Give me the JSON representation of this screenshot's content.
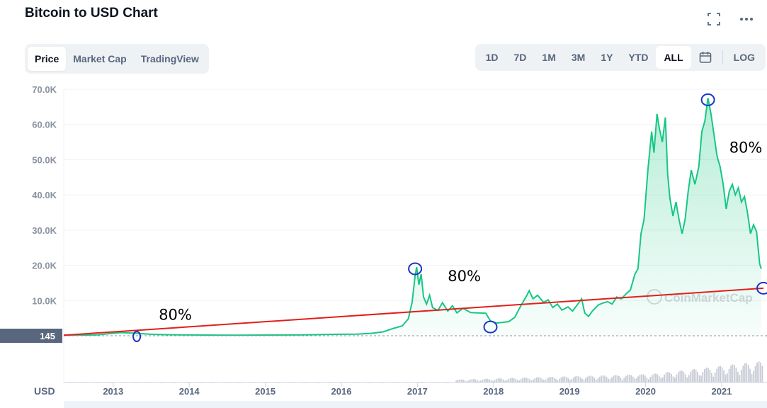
{
  "header": {
    "title": "Bitcoin to USD Chart",
    "icons": [
      "fullscreen-icon",
      "more-icon"
    ]
  },
  "tabs": [
    {
      "label": "Price",
      "active": true
    },
    {
      "label": "Market Cap",
      "active": false
    },
    {
      "label": "TradingView",
      "active": false
    }
  ],
  "ranges": [
    {
      "label": "1D",
      "active": false
    },
    {
      "label": "7D",
      "active": false
    },
    {
      "label": "1M",
      "active": false
    },
    {
      "label": "3M",
      "active": false
    },
    {
      "label": "1Y",
      "active": false
    },
    {
      "label": "YTD",
      "active": false
    },
    {
      "label": "ALL",
      "active": true
    },
    {
      "label": "",
      "icon": "calendar-icon",
      "active": false
    },
    {
      "label": "LOG",
      "active": false
    }
  ],
  "chart_data": {
    "type": "area",
    "title": "",
    "currency_label": "USD",
    "current_marker_label": "145",
    "watermark": "CoinMarketCap",
    "ylim": [
      0,
      70000
    ],
    "y_ticks": [
      {
        "value": 10000,
        "label": "10.0K"
      },
      {
        "value": 20000,
        "label": "20.0K"
      },
      {
        "value": 30000,
        "label": "30.0K"
      },
      {
        "value": 40000,
        "label": "40.0K"
      },
      {
        "value": 50000,
        "label": "50.0K"
      },
      {
        "value": 60000,
        "label": "60.0K"
      },
      {
        "value": 70000,
        "label": "70.0K"
      }
    ],
    "x_ticks": [
      "2013",
      "2014",
      "2015",
      "2016",
      "2017",
      "2018",
      "2019",
      "2020",
      "2021"
    ],
    "xlim": [
      2012.35,
      2021.55
    ],
    "colors": {
      "price": "#16c784",
      "trend": "#e0201c",
      "marker": "#1a35c8",
      "volume": "#c9ccd6"
    },
    "series": [
      {
        "values": [
          [
            2012.35,
            150
          ],
          [
            2012.6,
            180
          ],
          [
            2012.8,
            260
          ],
          [
            2012.95,
            600
          ],
          [
            2013.1,
            900
          ],
          [
            2013.3,
            700
          ],
          [
            2013.5,
            400
          ],
          [
            2013.7,
            300
          ],
          [
            2013.9,
            250
          ],
          [
            2014.2,
            200
          ],
          [
            2014.6,
            150
          ],
          [
            2015.0,
            200
          ],
          [
            2015.5,
            250
          ],
          [
            2015.9,
            400
          ],
          [
            2016.2,
            450
          ],
          [
            2016.4,
            700
          ],
          [
            2016.55,
            1100
          ],
          [
            2016.7,
            2200
          ],
          [
            2016.8,
            2800
          ],
          [
            2016.88,
            4800
          ],
          [
            2016.93,
            9500
          ],
          [
            2016.97,
            17000
          ],
          [
            2016.99,
            19500
          ],
          [
            2017.02,
            14500
          ],
          [
            2017.05,
            17500
          ],
          [
            2017.08,
            11000
          ],
          [
            2017.12,
            9000
          ],
          [
            2017.16,
            11500
          ],
          [
            2017.2,
            8000
          ],
          [
            2017.27,
            7200
          ],
          [
            2017.33,
            9400
          ],
          [
            2017.4,
            7000
          ],
          [
            2017.46,
            8500
          ],
          [
            2017.52,
            6500
          ],
          [
            2017.6,
            7800
          ],
          [
            2017.7,
            6600
          ],
          [
            2017.8,
            6500
          ],
          [
            2017.9,
            6400
          ],
          [
            2017.96,
            4200
          ],
          [
            2018.04,
            3600
          ],
          [
            2018.12,
            3800
          ],
          [
            2018.2,
            4000
          ],
          [
            2018.28,
            5200
          ],
          [
            2018.36,
            8500
          ],
          [
            2018.44,
            11500
          ],
          [
            2018.47,
            12800
          ],
          [
            2018.52,
            10500
          ],
          [
            2018.58,
            11500
          ],
          [
            2018.66,
            9500
          ],
          [
            2018.72,
            10200
          ],
          [
            2018.78,
            8000
          ],
          [
            2018.84,
            9000
          ],
          [
            2018.9,
            7300
          ],
          [
            2018.98,
            8200
          ],
          [
            2019.04,
            7000
          ],
          [
            2019.12,
            9300
          ],
          [
            2019.16,
            10500
          ],
          [
            2019.2,
            6500
          ],
          [
            2019.25,
            5500
          ],
          [
            2019.3,
            7000
          ],
          [
            2019.38,
            8800
          ],
          [
            2019.44,
            9300
          ],
          [
            2019.5,
            9700
          ],
          [
            2019.56,
            9000
          ],
          [
            2019.62,
            11000
          ],
          [
            2019.68,
            10500
          ],
          [
            2019.74,
            11800
          ],
          [
            2019.8,
            13000
          ],
          [
            2019.86,
            17500
          ],
          [
            2019.9,
            19000
          ],
          [
            2019.94,
            29000
          ],
          [
            2019.98,
            33000
          ],
          [
            2020.03,
            47000
          ],
          [
            2020.08,
            58000
          ],
          [
            2020.11,
            52000
          ],
          [
            2020.15,
            63000
          ],
          [
            2020.18,
            59000
          ],
          [
            2020.22,
            55000
          ],
          [
            2020.26,
            62000
          ],
          [
            2020.29,
            46000
          ],
          [
            2020.32,
            39000
          ],
          [
            2020.36,
            34000
          ],
          [
            2020.4,
            38000
          ],
          [
            2020.44,
            33000
          ],
          [
            2020.48,
            29000
          ],
          [
            2020.52,
            33000
          ],
          [
            2020.56,
            41000
          ],
          [
            2020.6,
            47000
          ],
          [
            2020.65,
            43000
          ],
          [
            2020.7,
            48000
          ],
          [
            2020.74,
            58000
          ],
          [
            2020.78,
            61000
          ],
          [
            2020.82,
            67500
          ],
          [
            2020.86,
            63000
          ],
          [
            2020.9,
            57000
          ],
          [
            2020.94,
            51000
          ],
          [
            2020.98,
            48000
          ],
          [
            2021.02,
            43000
          ],
          [
            2021.06,
            36000
          ],
          [
            2021.1,
            41000
          ],
          [
            2021.14,
            43000
          ],
          [
            2021.18,
            40000
          ],
          [
            2021.22,
            42000
          ],
          [
            2021.26,
            38000
          ],
          [
            2021.3,
            39500
          ],
          [
            2021.34,
            35000
          ],
          [
            2021.38,
            29000
          ],
          [
            2021.42,
            31500
          ],
          [
            2021.46,
            29500
          ],
          [
            2021.5,
            20500
          ],
          [
            2021.52,
            19000
          ]
        ]
      }
    ],
    "trendline": {
      "values": [
        [
          2012.35,
          145
        ],
        [
          2021.55,
          13500
        ]
      ]
    },
    "highlighted_points": [
      [
        2013.31,
        -200
      ],
      [
        2016.97,
        19000
      ],
      [
        2017.96,
        2500
      ],
      [
        2020.82,
        67000
      ],
      [
        2021.55,
        13500
      ]
    ],
    "annotations": [
      {
        "text": "80%",
        "x": 2013.6,
        "y": 4500
      },
      {
        "text": "80%",
        "x": 2017.4,
        "y": 15500
      },
      {
        "text": "80%",
        "x": 2021.1,
        "y": 52000
      }
    ]
  }
}
